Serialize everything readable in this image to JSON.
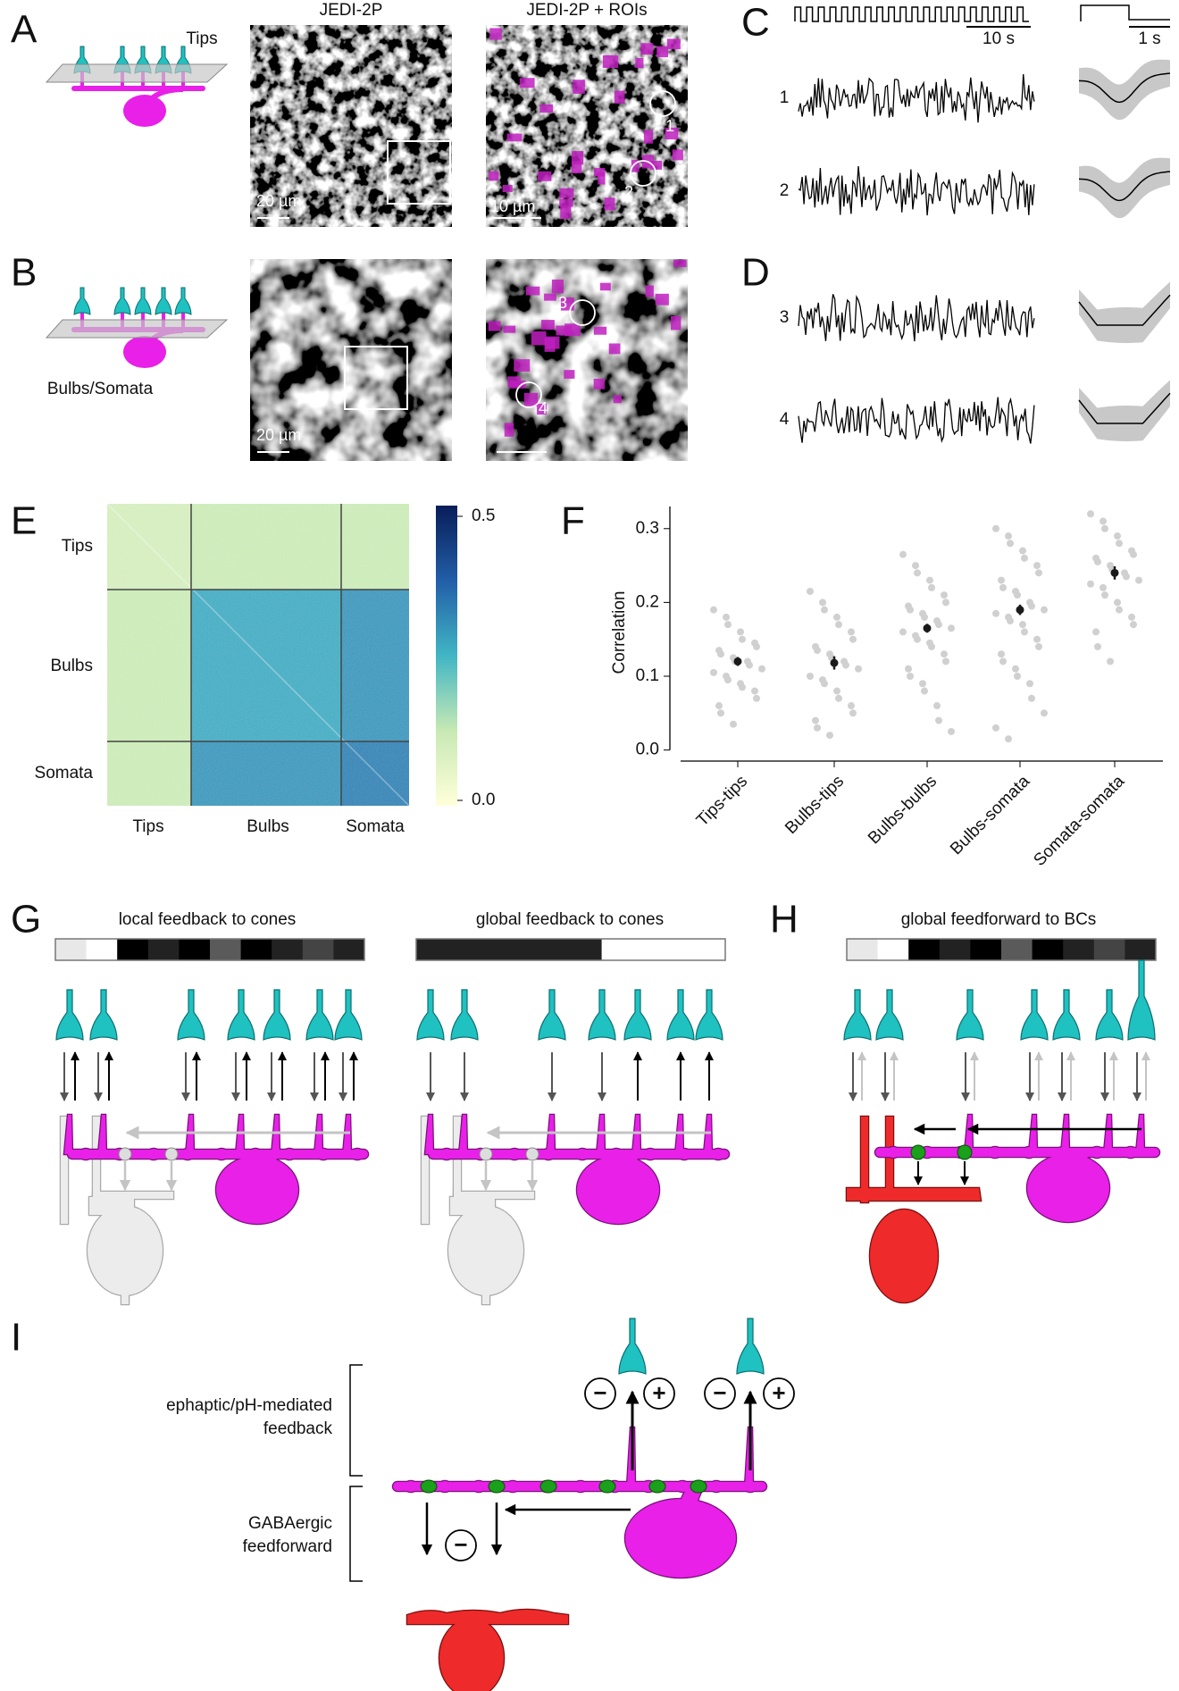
{
  "panel_letters": [
    "A",
    "B",
    "C",
    "D",
    "E",
    "F",
    "G",
    "H",
    "I"
  ],
  "panel_a": {
    "label": "Tips",
    "image_titles": [
      "JEDI-2P",
      "JEDI-2P + ROIs"
    ],
    "scale_bars": [
      "20 µm",
      "10 µm"
    ],
    "roi_labels": [
      "1",
      "2"
    ]
  },
  "panel_b": {
    "label": "Bulbs/Somata",
    "scale_bars": [
      "20 µm"
    ],
    "roi_labels": [
      "3",
      "4"
    ]
  },
  "panel_c": {
    "time_scales": [
      "10 s",
      "1 s"
    ],
    "trace_labels": [
      "1",
      "2"
    ]
  },
  "panel_d": {
    "trace_labels": [
      "3",
      "4"
    ]
  },
  "panel_g": {
    "titles": [
      "local feedback to cones",
      "global feedback to cones"
    ]
  },
  "panel_h": {
    "title": "global feedforward to BCs"
  },
  "panel_i": {
    "upper_label": [
      "ephaptic/pH-mediated",
      "feedback"
    ],
    "lower_label": [
      "GABAergic",
      "feedforward"
    ],
    "signs": [
      "−",
      "+",
      "−",
      "+",
      "−"
    ]
  },
  "chart_data": [
    {
      "type": "heatmap",
      "categories": [
        "Tips",
        "Bulbs",
        "Somata"
      ],
      "values": [
        [
          0.1,
          0.12,
          0.12
        ],
        [
          0.12,
          0.27,
          0.3
        ],
        [
          0.12,
          0.3,
          0.33
        ]
      ],
      "colormap": [
        "#ffffd9",
        "#c7e9b4",
        "#41b6c4",
        "#225ea8",
        "#081d58"
      ],
      "zlim": [
        0,
        0.5
      ],
      "zticks": [
        {
          "value": 0,
          "label": "0.0"
        },
        0.5
      ]
    },
    {
      "type": "strip",
      "ylabel": "Correlation",
      "categories": [
        "Tips-tips",
        "Bulbs-tips",
        "Bulbs-bulbs",
        "Bulbs-somata",
        "Somata-somata"
      ],
      "ylim": [
        -0.015,
        0.33
      ],
      "yticks": [
        {
          "value": 0,
          "label": "0.0"
        },
        0.1,
        0.2,
        0.3
      ],
      "point_color": "#d0d0d0",
      "mean_color": "#1a1a1a",
      "means": [
        0.12,
        0.118,
        0.165,
        0.19,
        0.24
      ],
      "errors": [
        0.006,
        0.009,
        0.006,
        0.007,
        0.009
      ],
      "points": [
        [
          0.19,
          0.18,
          0.17,
          0.16,
          0.15,
          0.145,
          0.14,
          0.135,
          0.13,
          0.125,
          0.12,
          0.12,
          0.115,
          0.11,
          0.105,
          0.1,
          0.095,
          0.09,
          0.085,
          0.08,
          0.07,
          0.06,
          0.05,
          0.035
        ],
        [
          0.215,
          0.2,
          0.19,
          0.18,
          0.17,
          0.16,
          0.15,
          0.14,
          0.135,
          0.13,
          0.125,
          0.12,
          0.115,
          0.11,
          0.1,
          0.095,
          0.09,
          0.08,
          0.07,
          0.06,
          0.05,
          0.04,
          0.03,
          0.02
        ],
        [
          0.265,
          0.25,
          0.24,
          0.23,
          0.22,
          0.21,
          0.2,
          0.195,
          0.19,
          0.185,
          0.18,
          0.175,
          0.17,
          0.165,
          0.16,
          0.155,
          0.15,
          0.145,
          0.14,
          0.13,
          0.12,
          0.11,
          0.1,
          0.09,
          0.08,
          0.06,
          0.04,
          0.025
        ],
        [
          0.3,
          0.29,
          0.28,
          0.27,
          0.26,
          0.25,
          0.24,
          0.23,
          0.22,
          0.215,
          0.21,
          0.2,
          0.195,
          0.19,
          0.185,
          0.18,
          0.175,
          0.17,
          0.16,
          0.15,
          0.14,
          0.13,
          0.12,
          0.11,
          0.1,
          0.09,
          0.07,
          0.05,
          0.03,
          0.015
        ],
        [
          0.32,
          0.31,
          0.3,
          0.29,
          0.28,
          0.27,
          0.265,
          0.26,
          0.255,
          0.25,
          0.245,
          0.24,
          0.235,
          0.23,
          0.225,
          0.22,
          0.21,
          0.2,
          0.19,
          0.18,
          0.17,
          0.16,
          0.14,
          0.12
        ]
      ]
    }
  ]
}
